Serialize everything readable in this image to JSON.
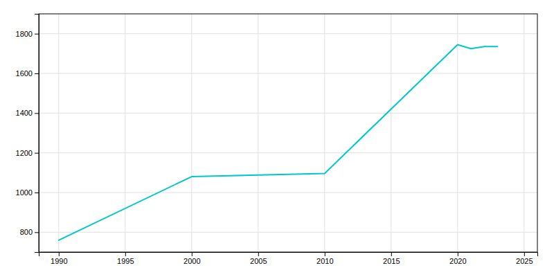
{
  "chart_data": {
    "type": "line",
    "x": [
      1990,
      2000,
      2010,
      2020,
      2021,
      2022,
      2023
    ],
    "values": [
      760,
      1080,
      1096,
      1745,
      1725,
      1735,
      1735
    ],
    "color": "#00C8C8",
    "xlim": [
      1988.5,
      2026
    ],
    "ylim": [
      700,
      1900
    ],
    "xticks": [
      1990,
      1995,
      2000,
      2005,
      2010,
      2015,
      2020,
      2025
    ],
    "yticks": [
      800,
      1000,
      1200,
      1400,
      1600,
      1800
    ],
    "grid": true
  }
}
